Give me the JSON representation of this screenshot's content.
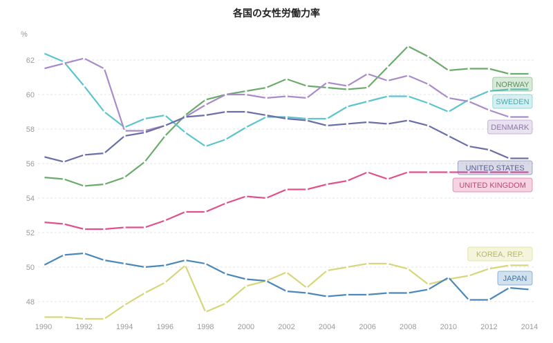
{
  "chart_data": {
    "type": "line",
    "title": "各国の女性労働力率",
    "ylabel": "%",
    "xlabel": "",
    "ylim": [
      47,
      62.7
    ],
    "yticks": [
      48,
      50,
      52,
      54,
      56,
      58,
      60,
      62
    ],
    "xticks": [
      1990,
      1992,
      1994,
      1996,
      1998,
      2000,
      2002,
      2004,
      2006,
      2008,
      2010,
      2012,
      2014
    ],
    "grid": true,
    "legend": "inline-right",
    "x": [
      1990,
      1991,
      1992,
      1993,
      1994,
      1995,
      1996,
      1997,
      1998,
      1999,
      2000,
      2001,
      2002,
      2003,
      2004,
      2005,
      2006,
      2007,
      2008,
      2009,
      2010,
      2011,
      2012,
      2013,
      2014
    ],
    "series": [
      {
        "name": "NORWAY",
        "color": "#6aab6a",
        "values": [
          55.2,
          55.1,
          54.7,
          54.8,
          55.2,
          56.1,
          57.6,
          58.8,
          59.7,
          60.0,
          60.2,
          60.4,
          60.9,
          60.5,
          60.4,
          60.3,
          60.4,
          61.6,
          62.8,
          62.2,
          61.4,
          61.5,
          61.5,
          61.2,
          61.2
        ]
      },
      {
        "name": "SWEDEN",
        "color": "#5bc4cc",
        "values": [
          62.4,
          61.9,
          60.5,
          59.0,
          58.1,
          58.6,
          58.8,
          57.8,
          57.0,
          57.4,
          58.1,
          58.7,
          58.7,
          58.6,
          58.6,
          59.3,
          59.6,
          59.9,
          59.9,
          59.5,
          59.0,
          59.7,
          60.2,
          60.3,
          60.3
        ]
      },
      {
        "name": "DENMARK",
        "color": "#a98bc9",
        "values": [
          61.5,
          61.8,
          62.1,
          61.5,
          57.9,
          57.9,
          58.2,
          58.7,
          59.4,
          60.0,
          60.0,
          59.8,
          59.9,
          59.8,
          60.7,
          60.5,
          61.2,
          60.8,
          61.1,
          60.6,
          59.8,
          59.6,
          59.1,
          58.7,
          58.7
        ]
      },
      {
        "name": "UNITED STATES",
        "color": "#6a6fa8",
        "values": [
          56.4,
          56.1,
          56.5,
          56.6,
          57.6,
          57.8,
          58.2,
          58.7,
          58.8,
          59.0,
          59.0,
          58.8,
          58.6,
          58.5,
          58.2,
          58.3,
          58.4,
          58.3,
          58.5,
          58.2,
          57.6,
          57.0,
          56.8,
          56.3,
          56.3
        ]
      },
      {
        "name": "UNITED KINGDOM",
        "color": "#e0508a",
        "values": [
          52.6,
          52.5,
          52.2,
          52.2,
          52.3,
          52.3,
          52.7,
          53.2,
          53.2,
          53.7,
          54.1,
          54.0,
          54.5,
          54.5,
          54.8,
          55.0,
          55.5,
          55.1,
          55.5,
          55.5,
          55.5,
          55.5,
          55.5,
          55.5,
          55.5
        ]
      },
      {
        "name": "KOREA, REP.",
        "color": "#d6d67a",
        "values": [
          47.1,
          47.1,
          47.0,
          47.0,
          47.8,
          48.5,
          49.1,
          50.1,
          47.4,
          47.9,
          48.9,
          49.2,
          49.7,
          48.8,
          49.8,
          50.0,
          50.2,
          50.2,
          49.9,
          49.0,
          49.3,
          49.5,
          49.9,
          50.1,
          50.1
        ]
      },
      {
        "name": "JAPAN",
        "color": "#4a88bb",
        "values": [
          50.1,
          50.7,
          50.8,
          50.4,
          50.2,
          50.0,
          50.1,
          50.4,
          50.2,
          49.6,
          49.3,
          49.2,
          48.6,
          48.5,
          48.3,
          48.4,
          48.4,
          48.5,
          48.5,
          48.7,
          49.4,
          48.1,
          48.1,
          48.8,
          48.7
        ]
      }
    ]
  }
}
